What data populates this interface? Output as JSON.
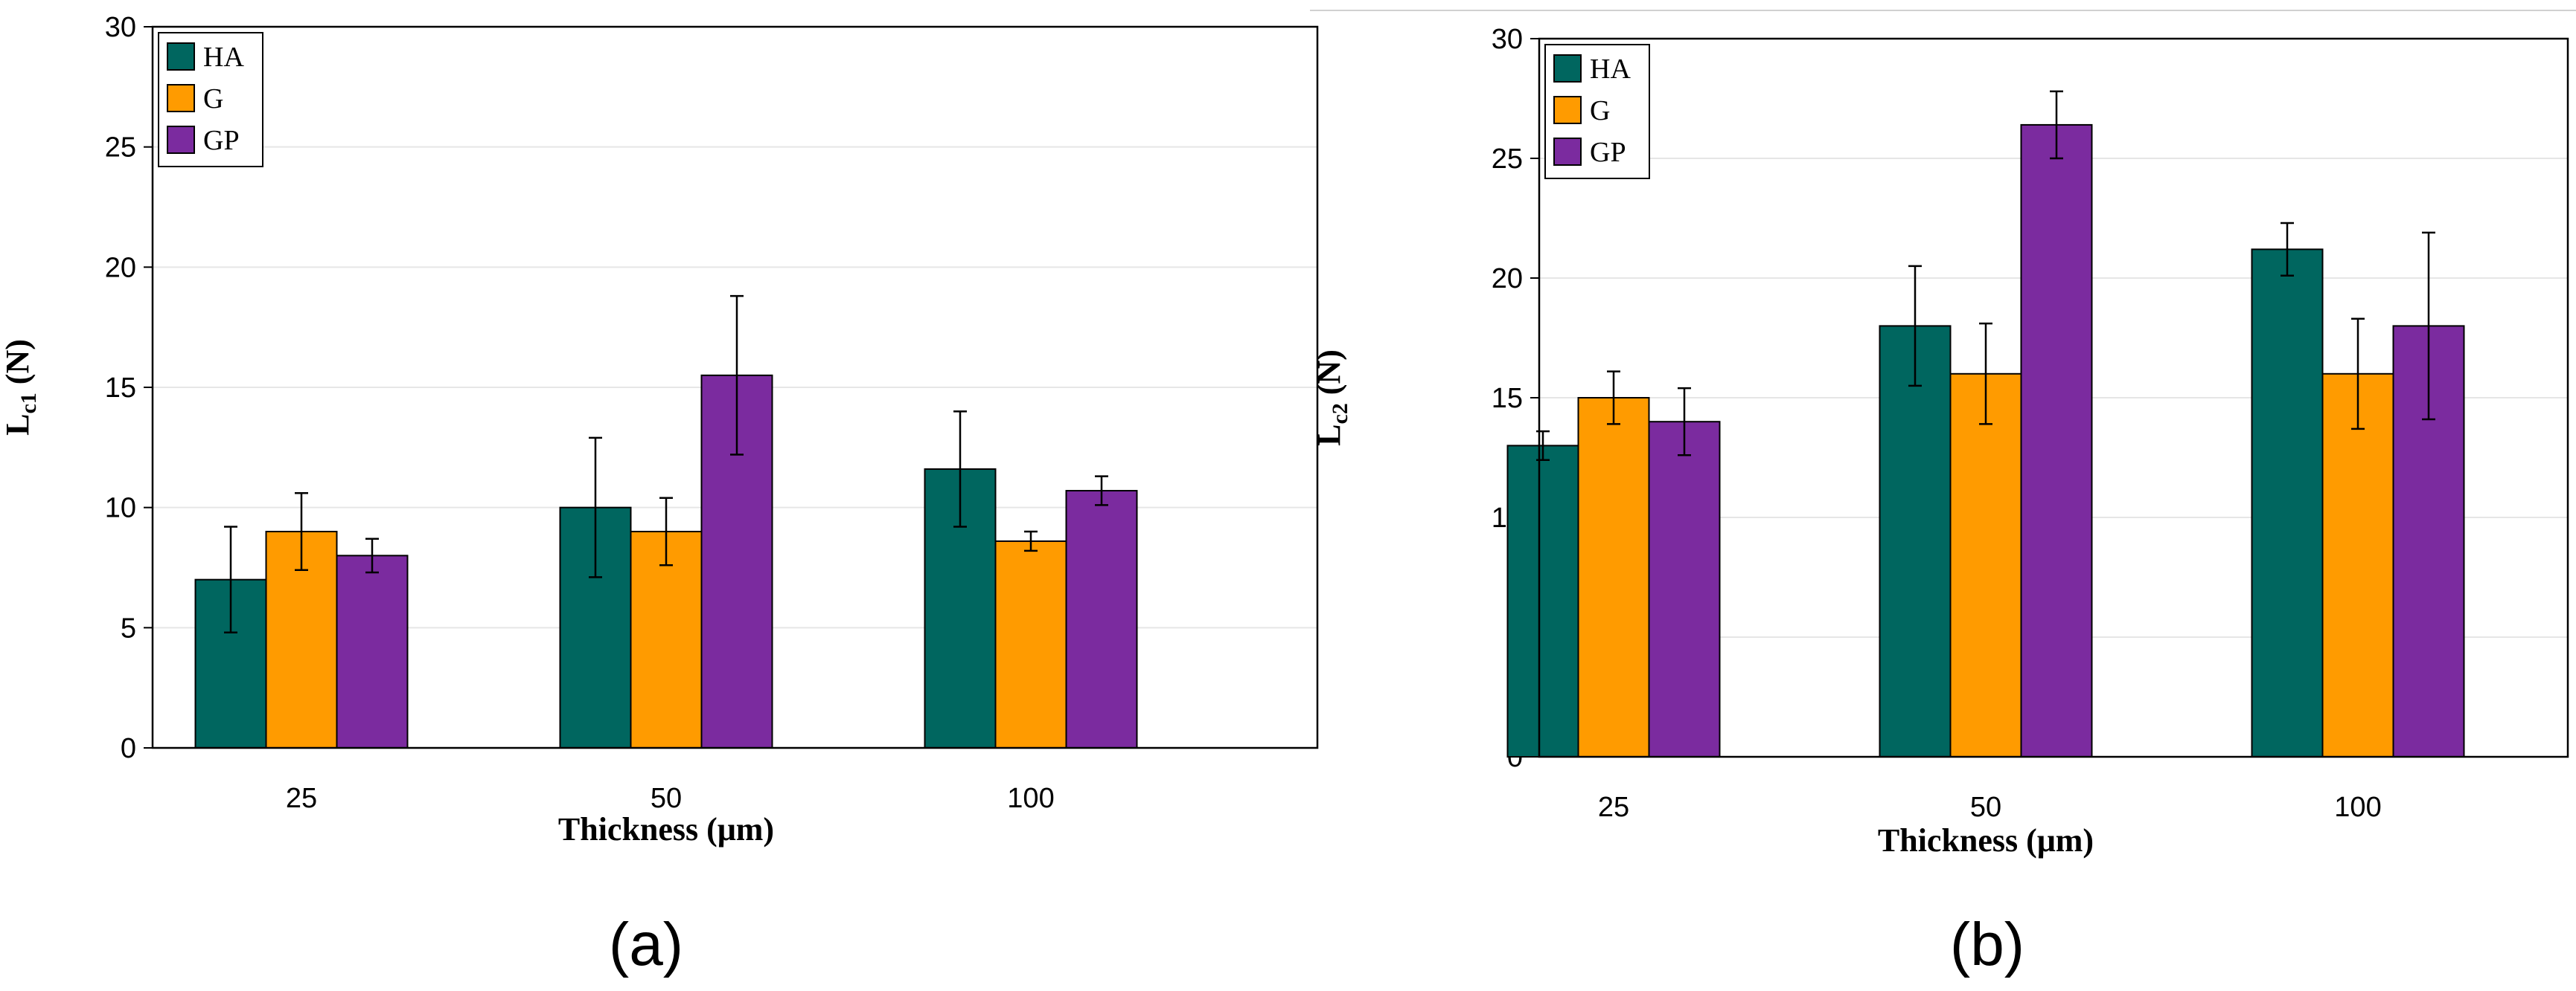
{
  "colors": {
    "HA": "#00665f",
    "G": "#ff9b00",
    "GP": "#7b2b9f"
  },
  "chart_data": [
    {
      "type": "bar",
      "panel_label": "(a)",
      "categories": [
        "25",
        "50",
        "100"
      ],
      "series": [
        {
          "name": "HA",
          "values": [
            7.0,
            10.0,
            11.6
          ],
          "errors": [
            2.2,
            2.9,
            2.4
          ]
        },
        {
          "name": "G",
          "values": [
            9.0,
            9.0,
            8.6
          ],
          "errors": [
            1.6,
            1.4,
            0.4
          ]
        },
        {
          "name": "GP",
          "values": [
            8.0,
            15.5,
            10.7
          ],
          "errors": [
            0.7,
            3.3,
            0.6
          ]
        }
      ],
      "ylabel_main": "L",
      "ylabel_sub": "c1",
      "ylabel_unit": " (N)",
      "xlabel": "Thickness (μm)",
      "ylim": [
        0,
        30
      ],
      "yticks": [
        0,
        5,
        10,
        15,
        20,
        25,
        30
      ],
      "legend_position": "top-left",
      "grid": true
    },
    {
      "type": "bar",
      "panel_label": "(b)",
      "categories": [
        "25",
        "50",
        "100"
      ],
      "series": [
        {
          "name": "HA",
          "values": [
            13.0,
            18.0,
            21.2
          ],
          "errors": [
            0.6,
            2.5,
            1.1
          ]
        },
        {
          "name": "G",
          "values": [
            15.0,
            16.0,
            16.0
          ],
          "errors": [
            1.1,
            2.1,
            2.3
          ]
        },
        {
          "name": "GP",
          "values": [
            14.0,
            26.4,
            18.0
          ],
          "errors": [
            1.4,
            1.4,
            3.9
          ]
        }
      ],
      "ylabel_main": "L",
      "ylabel_sub": "c2",
      "ylabel_unit": " (N)",
      "xlabel": "Thickness (μm)",
      "ylim": [
        0,
        30
      ],
      "yticks": [
        0,
        5,
        10,
        15,
        20,
        25,
        30
      ],
      "legend_position": "top-left",
      "grid": true
    }
  ]
}
